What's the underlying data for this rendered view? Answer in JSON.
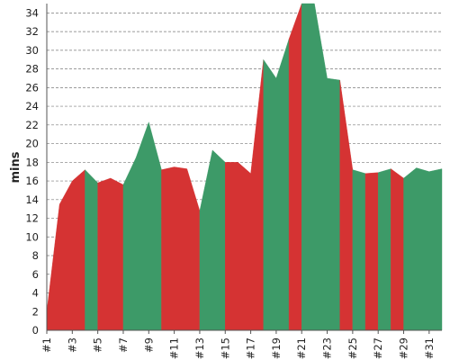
{
  "chart_data": {
    "type": "area",
    "title": "",
    "xlabel": "",
    "ylabel": "mins",
    "ylim": [
      0,
      35
    ],
    "y_ticks": [
      0,
      2,
      4,
      6,
      8,
      10,
      12,
      14,
      16,
      18,
      20,
      22,
      24,
      26,
      28,
      30,
      32,
      34
    ],
    "x_tick_labels": [
      "#1",
      "#3",
      "#5",
      "#7",
      "#9",
      "#11",
      "#13",
      "#15",
      "#17",
      "#19",
      "#21",
      "#23",
      "#25",
      "#27",
      "#29",
      "#31"
    ],
    "grid": true,
    "legend": "none",
    "x": [
      1,
      2,
      3,
      4,
      5,
      6,
      7,
      8,
      9,
      10,
      11,
      12,
      13,
      14,
      15,
      16,
      17,
      18,
      19,
      20,
      21,
      22,
      23,
      24,
      25,
      26,
      27,
      28,
      29,
      30,
      31,
      32
    ],
    "values": [
      2.0,
      13.5,
      16.0,
      17.2,
      15.8,
      16.3,
      15.6,
      18.5,
      22.3,
      17.2,
      17.5,
      17.3,
      12.8,
      19.3,
      18.0,
      18.0,
      16.8,
      29.0,
      27.0,
      31.2,
      35.0,
      35.0,
      27.0,
      26.8,
      17.2,
      16.8,
      16.9,
      17.3,
      16.3,
      17.4,
      17.0,
      17.3
    ],
    "segments": [
      {
        "from": 1,
        "to": 4,
        "color": "#d53333"
      },
      {
        "from": 4,
        "to": 5,
        "color": "#3d9a68"
      },
      {
        "from": 5,
        "to": 7,
        "color": "#d53333"
      },
      {
        "from": 7,
        "to": 10,
        "color": "#3d9a68"
      },
      {
        "from": 10,
        "to": 13,
        "color": "#d53333"
      },
      {
        "from": 13,
        "to": 15,
        "color": "#3d9a68"
      },
      {
        "from": 15,
        "to": 18,
        "color": "#d53333"
      },
      {
        "from": 18,
        "to": 20,
        "color": "#3d9a68"
      },
      {
        "from": 20,
        "to": 21,
        "color": "#d53333"
      },
      {
        "from": 21,
        "to": 24,
        "color": "#3d9a68"
      },
      {
        "from": 24,
        "to": 25,
        "color": "#d53333"
      },
      {
        "from": 25,
        "to": 26,
        "color": "#3d9a68"
      },
      {
        "from": 26,
        "to": 27,
        "color": "#d53333"
      },
      {
        "from": 27,
        "to": 28,
        "color": "#3d9a68"
      },
      {
        "from": 28,
        "to": 29,
        "color": "#d53333"
      },
      {
        "from": 29,
        "to": 32,
        "color": "#3d9a68"
      }
    ]
  }
}
